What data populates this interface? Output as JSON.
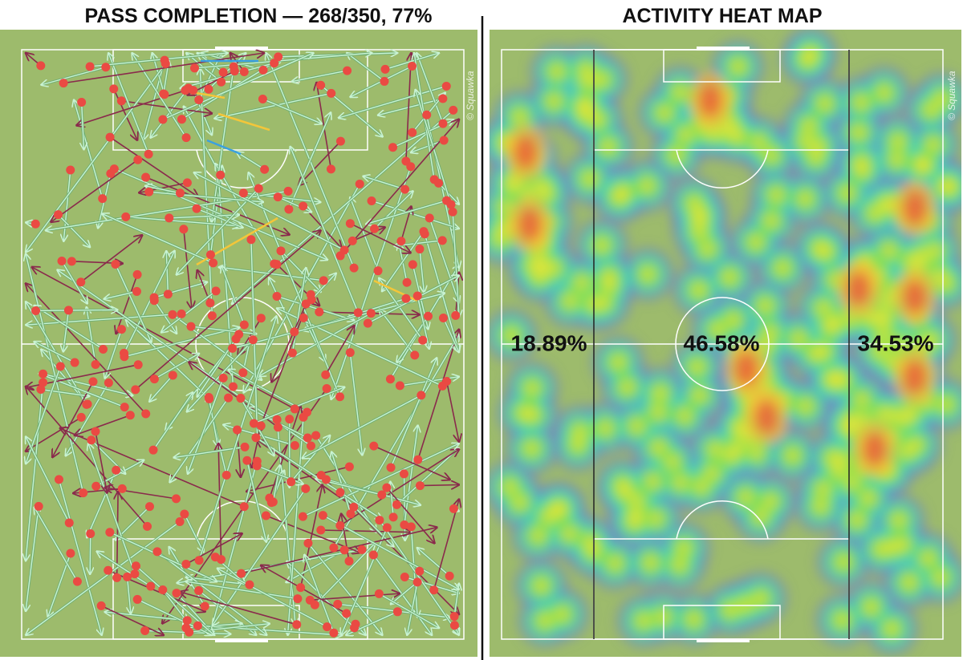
{
  "panels": [
    {
      "title": "PASS COMPLETION — 268/350, 77%",
      "watermark": "© Squawka"
    },
    {
      "title": "ACTIVITY HEAT MAP",
      "watermark": "© Squawka",
      "zones": [
        "18.89%",
        "46.58%",
        "34.53%"
      ]
    }
  ]
}
